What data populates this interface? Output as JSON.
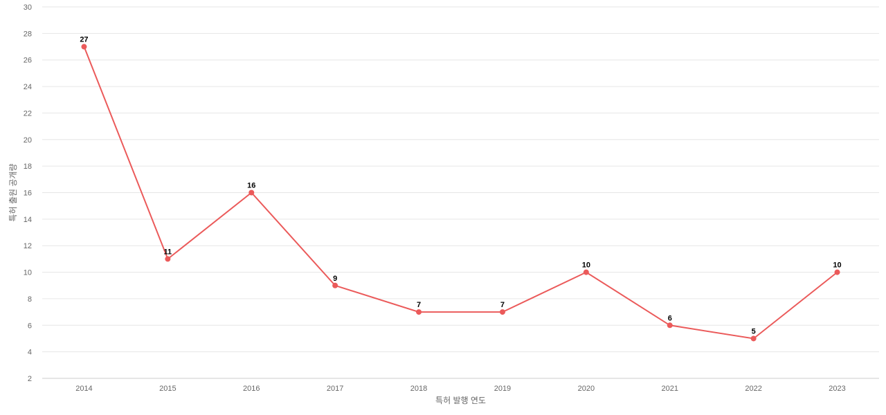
{
  "chart_data": {
    "type": "line",
    "title": "",
    "xlabel": "특허 발행 연도",
    "ylabel": "특허 출원 공개량",
    "categories": [
      "2014",
      "2015",
      "2016",
      "2017",
      "2018",
      "2019",
      "2020",
      "2021",
      "2022",
      "2023"
    ],
    "values": [
      27,
      11,
      16,
      9,
      7,
      7,
      10,
      6,
      5,
      10
    ],
    "ylim": [
      2,
      30
    ],
    "yticks": [
      2,
      4,
      6,
      8,
      10,
      12,
      14,
      16,
      18,
      20,
      22,
      24,
      26,
      28,
      30
    ],
    "grid": true,
    "legend": "none",
    "series_color": "#eb5a5a",
    "data_labels": true
  }
}
